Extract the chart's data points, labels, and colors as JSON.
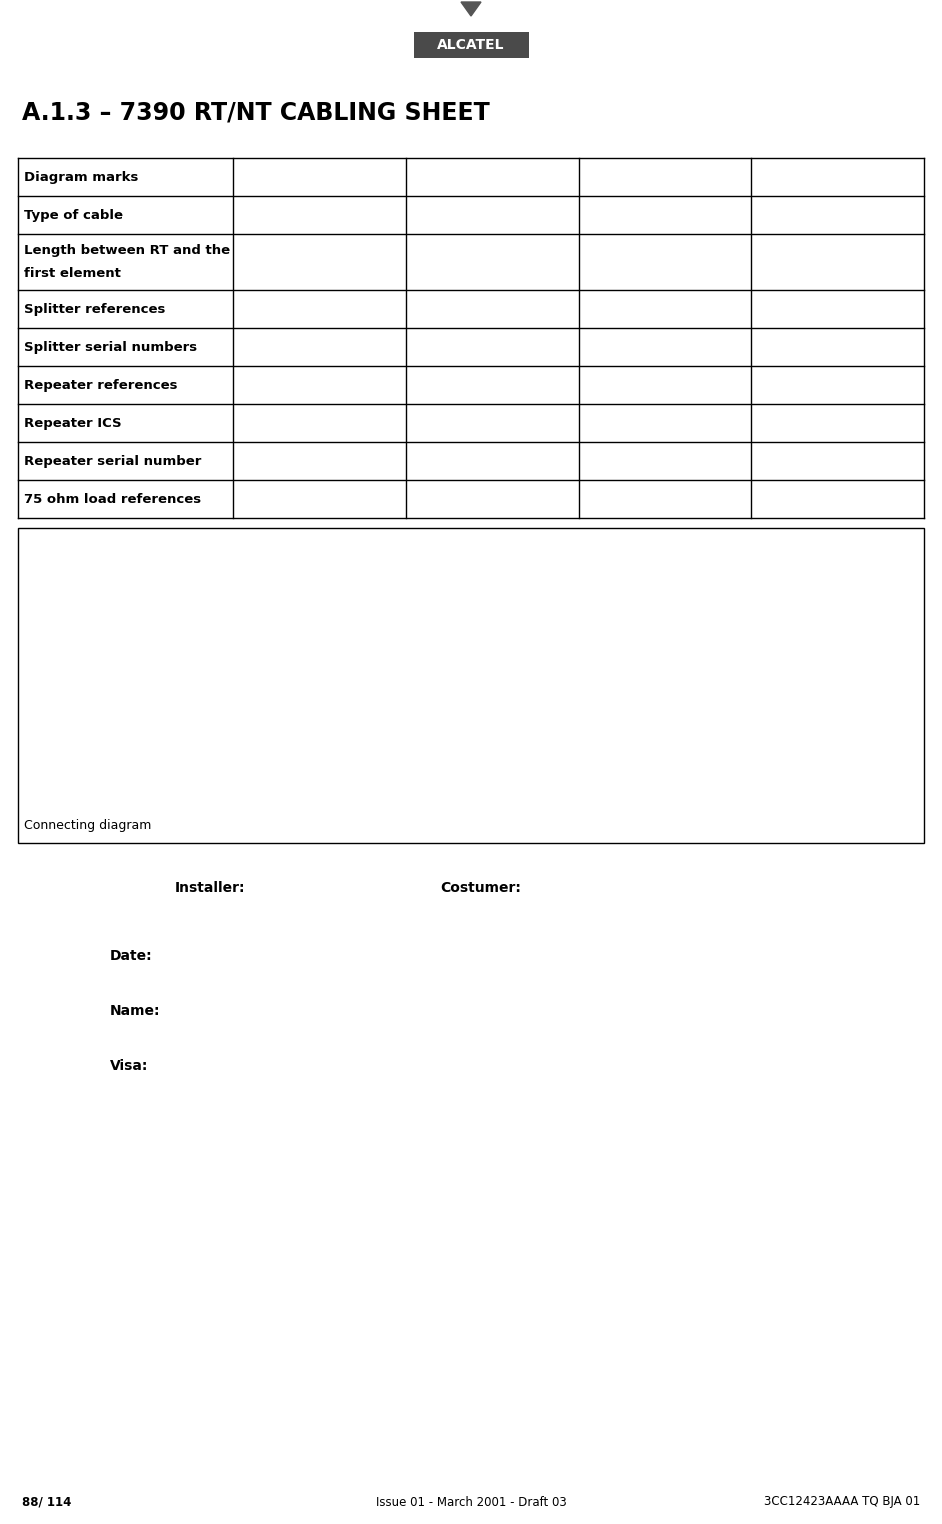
{
  "title": "A.1.3 – 7390 RT/NT CABLING SHEET",
  "alcatel_logo_text": "ALCATEL",
  "table_rows": [
    "Diagram marks",
    "Type of cable",
    "Length between RT and the\nfirst element",
    "Splitter references",
    "Splitter serial numbers",
    "Repeater references",
    "Repeater ICS",
    "Repeater serial number",
    "75 ohm load references"
  ],
  "num_data_cols": 4,
  "connecting_diagram_label": "Connecting diagram",
  "installer_label": "Installer:",
  "costumer_label": "Costumer:",
  "date_label": "Date:",
  "name_label": "Name:",
  "visa_label": "Visa:",
  "footer_left": "88/ 114",
  "footer_center": "Issue 01 - March 2001 - Draft 03",
  "footer_right": "3CC12423AAAA TQ BJA 01",
  "bg_color": "#ffffff",
  "table_border_color": "#000000",
  "title_color": "#000000",
  "logo_bg_color": "#4a4a4a",
  "logo_text_color": "#ffffff"
}
